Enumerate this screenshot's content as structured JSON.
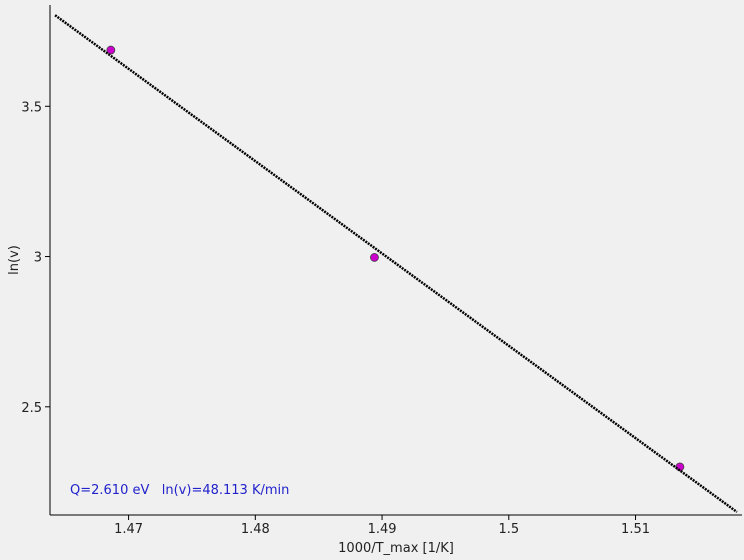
{
  "chart_data": {
    "type": "scatter",
    "x_label": "1000/T_max [1/K]",
    "y_label": "ln(v)",
    "annotation": "Q=2.610 eV   ln(v)=48.113 K/min",
    "xlim": [
      1.4638,
      1.5184
    ],
    "ylim": [
      2.14,
      3.837
    ],
    "xticks": [
      1.47,
      1.48,
      1.49,
      1.5,
      1.51
    ],
    "yticks": [
      2.5,
      3,
      3.5
    ],
    "series": [
      {
        "mode": "markers",
        "color": "#cc00cc",
        "x": [
          1.4686,
          1.4894,
          1.5135
        ],
        "values": [
          3.687,
          2.997,
          2.3
        ]
      },
      {
        "mode": "line",
        "color": "#000000",
        "x": [
          1.4642,
          1.518
        ],
        "values": [
          3.803,
          2.15
        ]
      }
    ]
  }
}
